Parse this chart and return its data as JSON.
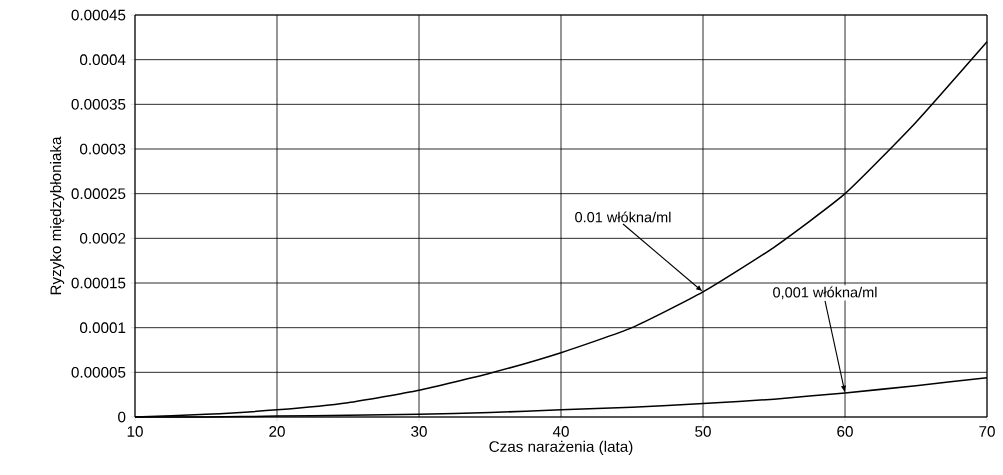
{
  "chart_data": {
    "type": "line",
    "xlabel": "Czas narażenia (lata)",
    "ylabel": "Ryzyko międzybłoniaka",
    "x": [
      10,
      15,
      20,
      25,
      30,
      35,
      40,
      45,
      50,
      55,
      60,
      65,
      70
    ],
    "series": [
      {
        "color": "#000000",
        "values": [
          0,
          3e-06,
          8e-06,
          1.6e-05,
          3e-05,
          4.9e-05,
          7.2e-05,
          0.0001,
          0.00014,
          0.00019,
          0.00025,
          0.00033,
          0.00042
        ]
      },
      {
        "color": "#000000",
        "values": [
          0,
          0,
          1e-06,
          2e-06,
          3e-06,
          5e-06,
          8e-06,
          1.1e-05,
          1.5e-05,
          2e-05,
          2.7e-05,
          3.5e-05,
          4.4e-05
        ]
      }
    ],
    "xlim": [
      10,
      70
    ],
    "xticks": [
      10,
      20,
      30,
      40,
      50,
      60,
      70
    ],
    "ylim": [
      0,
      0.00045
    ],
    "yticks": [
      {
        "value": 0,
        "label": "0"
      },
      {
        "value": 5e-05,
        "label": "0.00005"
      },
      {
        "value": 0.0001,
        "label": "0.0001"
      },
      {
        "value": 0.00015,
        "label": "0.00015"
      },
      {
        "value": 0.0002,
        "label": "0.0002"
      },
      {
        "value": 0.00025,
        "label": "0.00025"
      },
      {
        "value": 0.0003,
        "label": "0.0003"
      },
      {
        "value": 0.00035,
        "label": "0.00035"
      },
      {
        "value": 0.0004,
        "label": "0.0004"
      },
      {
        "value": 0.00045,
        "label": "0.00045"
      }
    ],
    "grid": true,
    "marker": "none",
    "line_style": "solid",
    "annotations": [
      {
        "text": "0.01 włókna/ml",
        "x": 50,
        "y": 0.00014
      },
      {
        "text": "0,001 włókna/ml",
        "x": 60,
        "y": 2.7e-05
      }
    ]
  }
}
